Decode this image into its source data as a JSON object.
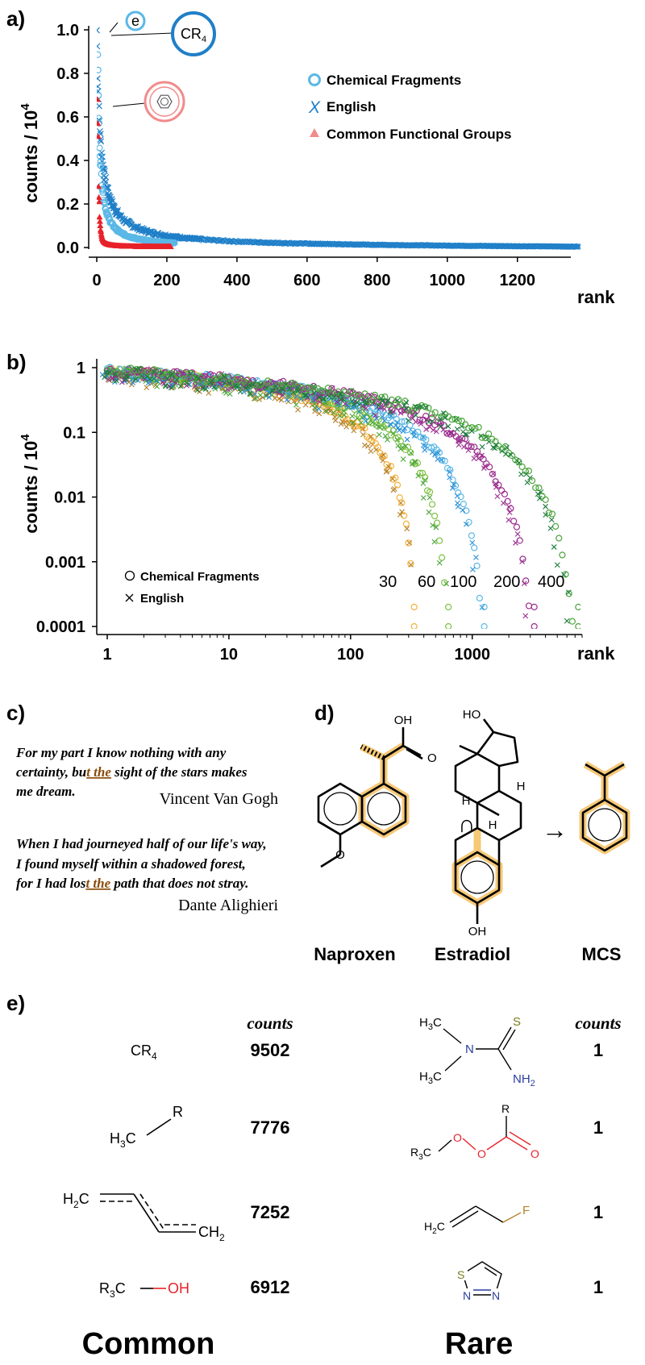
{
  "colors": {
    "chem_light_blue": "#5bb8e6",
    "english_blue": "#1f7fc8",
    "functional_red": "#e8222a",
    "legend_red": "#f28b8b",
    "orange": "#f5b13a",
    "brown": "#b5822a",
    "green_light": "#7ec242",
    "green_mid": "#4aa53a",
    "blue_mid": "#2b8fd6",
    "magenta": "#9b2e8e",
    "green_dark": "#1b7a3c",
    "highlight": "#f5c060",
    "underline": "#c06a10"
  },
  "panel_a": {
    "label": "a)",
    "callouts": {
      "e": "e",
      "cr4": "CR4",
      "benzene_icon": "benzene-icon"
    },
    "chart_data": {
      "type": "scatter",
      "ylabel": "counts / 10",
      "ylabel_sup": "4",
      "xlabel": "rank",
      "xlim": [
        0,
        1380
      ],
      "ylim": [
        0,
        1.0
      ],
      "xticks": [
        "0",
        "200",
        "400",
        "600",
        "800",
        "1000",
        "1200"
      ],
      "xtick_values": [
        0,
        200,
        400,
        600,
        800,
        1000,
        1200
      ],
      "yticks": [
        "0.0",
        "0.2",
        "0.4",
        "0.6",
        "0.8",
        "1.0"
      ],
      "ytick_values": [
        0,
        0.2,
        0.4,
        0.6,
        0.8,
        1.0
      ],
      "legend_position": "top-right",
      "series": [
        {
          "name": "Chemical Fragments",
          "marker": "circle",
          "points": 220
        },
        {
          "name": "English",
          "marker": "x",
          "points": 1380
        },
        {
          "name": "Common Functional Groups",
          "marker": "triangle",
          "points": 210
        }
      ]
    }
  },
  "panel_b": {
    "label": "b)",
    "legend": {
      "chem": "Chemical Fragments",
      "english": "English"
    },
    "chart_data": {
      "type": "scatter",
      "scale": "log-log",
      "ylabel": "counts / 10",
      "ylabel_sup": "4",
      "xlabel": "rank",
      "xticks": [
        "1",
        "10",
        "100",
        "1000"
      ],
      "xtick_values": [
        1,
        10,
        100,
        1000
      ],
      "yticks": [
        "1",
        "0.1",
        "0.01",
        "0.001",
        "0.0001"
      ],
      "ytick_values": [
        1,
        0.1,
        0.01,
        0.001,
        0.0001
      ],
      "legend_position": "bottom-left",
      "series": [
        {
          "name": "30",
          "max_rank": 340
        },
        {
          "name": "60",
          "max_rank": 650
        },
        {
          "name": "100",
          "max_rank": 1280
        },
        {
          "name": "200",
          "max_rank": 3300
        },
        {
          "name": "400",
          "max_rank": 7600
        }
      ]
    }
  },
  "panel_c": {
    "label": "c)",
    "quote1": {
      "l1": "For my part I know nothing with any",
      "l2a": "certainty, bu",
      "l2b": "t the",
      "l2c": " sight of the stars makes",
      "l3": "me dream.",
      "author": "Vincent Van Gogh"
    },
    "quote2": {
      "l1": "When I had journeyed half of our life's way,",
      "l2": "I found myself within a shadowed forest,",
      "l3a": "for I had los",
      "l3b": "t the",
      "l3c": " path that does not stray.",
      "author": "Dante Alighieri"
    }
  },
  "panel_d": {
    "label": "d)",
    "names": {
      "naproxen": "Naproxen",
      "estradiol": "Estradiol",
      "mcs": "MCS"
    },
    "atoms": {
      "oh": "OH",
      "o": "O",
      "ho": "HO",
      "h": "H"
    },
    "symbols": {
      "intersect": "∩",
      "arrow": "→"
    }
  },
  "panel_e": {
    "label": "e)",
    "counts_head": "counts",
    "common_label": "Common",
    "rare_label": "Rare",
    "common": [
      {
        "formula": "CR4",
        "count": "9502"
      },
      {
        "formula": "H3C–R",
        "count": "7776"
      },
      {
        "formula": "H2C=CH-CH=CH2",
        "count": "7252"
      },
      {
        "formula": "R3C–OH",
        "count": "6912"
      }
    ],
    "rare": [
      {
        "count": "1"
      },
      {
        "count": "1"
      },
      {
        "count": "1"
      },
      {
        "count": "1"
      }
    ],
    "atoms": {
      "c": "C",
      "r": "R",
      "h": "H",
      "oh": "OH",
      "n": "N",
      "s": "S",
      "nh": "NH",
      "o": "O",
      "f": "F",
      "sub2": "2",
      "sub3": "3",
      "sub4": "4"
    }
  }
}
